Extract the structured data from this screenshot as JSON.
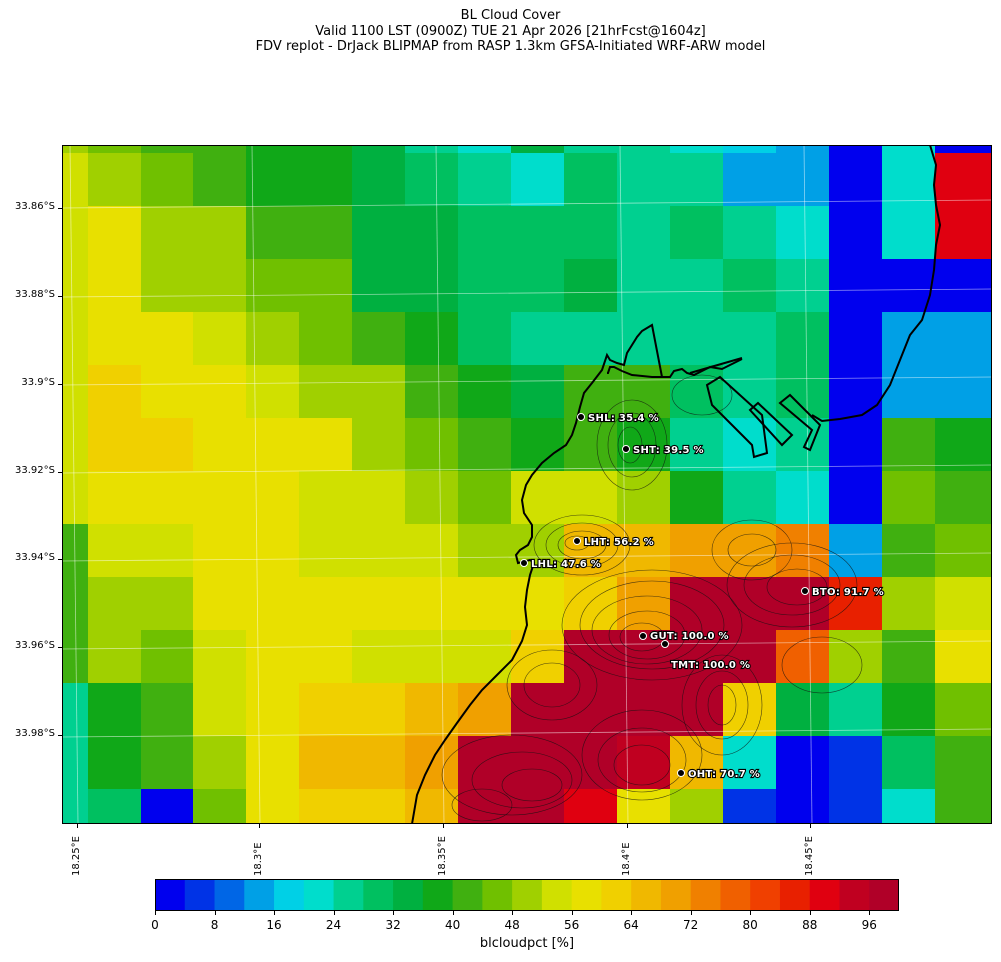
{
  "title": {
    "line1": "BL Cloud Cover",
    "line2": "Valid 1100 LST (0900Z) TUE 21 Apr 2026 [21hrFcst@1604z]",
    "line3": "FDV replot - DrJack BLIPMAP from RASP 1.3km GFSA-Initiated WRF-ARW model"
  },
  "map": {
    "lat_ticks": [
      "33.86°S",
      "33.88°S",
      "33.9°S",
      "33.92°S",
      "33.94°S",
      "33.96°S",
      "33.98°S"
    ],
    "lon_ticks": [
      "18.25°E",
      "18.3°E",
      "18.35°E",
      "18.4°E",
      "18.45°E"
    ],
    "grid_values": [
      [
        50,
        46,
        42,
        42,
        38,
        36,
        32,
        24,
        22,
        32,
        24,
        24,
        22,
        19,
        12,
        3,
        20,
        3
      ],
      [
        52,
        50,
        46,
        40,
        38,
        38,
        34,
        30,
        26,
        22,
        28,
        24,
        24,
        12,
        12,
        3,
        20,
        90
      ],
      [
        52,
        58,
        50,
        48,
        40,
        40,
        34,
        32,
        30,
        28,
        28,
        24,
        30,
        24,
        22,
        3,
        22,
        90
      ],
      [
        52,
        58,
        50,
        48,
        44,
        44,
        34,
        32,
        30,
        28,
        32,
        24,
        26,
        28,
        24,
        3,
        3,
        3
      ],
      [
        52,
        58,
        56,
        52,
        50,
        46,
        42,
        38,
        30,
        24,
        24,
        24,
        24,
        24,
        30,
        3,
        14,
        14
      ],
      [
        52,
        62,
        58,
        58,
        54,
        50,
        50,
        40,
        36,
        34,
        40,
        40,
        28,
        24,
        30,
        3,
        14,
        14
      ],
      [
        52,
        60,
        60,
        58,
        58,
        58,
        48,
        44,
        40,
        38,
        40,
        38,
        24,
        20,
        24,
        3,
        40,
        38
      ],
      [
        52,
        58,
        58,
        58,
        56,
        54,
        52,
        48,
        44,
        54,
        52,
        50,
        36,
        26,
        20,
        3,
        44,
        42
      ],
      [
        42,
        52,
        52,
        56,
        58,
        54,
        54,
        54,
        50,
        50,
        64,
        66,
        70,
        70,
        72,
        14,
        40,
        44
      ],
      [
        42,
        50,
        50,
        56,
        56,
        56,
        56,
        56,
        56,
        56,
        60,
        68,
        98,
        98,
        98,
        84,
        50,
        52
      ],
      [
        42,
        50,
        46,
        52,
        56,
        56,
        54,
        54,
        54,
        60,
        98,
        98,
        98,
        98,
        78,
        48,
        40,
        58
      ],
      [
        24,
        38,
        42,
        52,
        58,
        62,
        62,
        64,
        70,
        98,
        98,
        98,
        96,
        62,
        34,
        24,
        38,
        46
      ],
      [
        24,
        36,
        42,
        50,
        56,
        64,
        64,
        68,
        98,
        98,
        98,
        92,
        66,
        20,
        3,
        6,
        30,
        42
      ],
      [
        24,
        28,
        3,
        44,
        58,
        62,
        62,
        64,
        98,
        98,
        90,
        58,
        50,
        6,
        3,
        6,
        22,
        40
      ]
    ],
    "stations": [
      {
        "code": "SHL",
        "label": "SHL: 35.4 %",
        "value": 35.4
      },
      {
        "code": "SHT",
        "label": "SHT: 39.5 %",
        "value": 39.5
      },
      {
        "code": "LHT",
        "label": "LHT: 56.2 %",
        "value": 56.2
      },
      {
        "code": "LHL",
        "label": "LHL: 47.6 %",
        "value": 47.6
      },
      {
        "code": "BTO",
        "label": "BTO: 91.7 %",
        "value": 91.7
      },
      {
        "code": "GUT",
        "label": "GUT: 100.0 %",
        "value": 100.0
      },
      {
        "code": "TMT",
        "label": "TMT: 100.0 %",
        "value": 100.0
      },
      {
        "code": "OHT",
        "label": "OHT: 70.7 %",
        "value": 70.7
      }
    ]
  },
  "colorbar": {
    "min": 0,
    "max": 100,
    "step": 4,
    "colors": [
      "#0000ee",
      "#0033e6",
      "#0066e6",
      "#00a0e6",
      "#00d0e6",
      "#00ddcc",
      "#00d090",
      "#00c060",
      "#00b040",
      "#10a818",
      "#40b010",
      "#70c000",
      "#a0d000",
      "#d0e000",
      "#e8e000",
      "#f0d000",
      "#f0b800",
      "#f0a000",
      "#f08000",
      "#f06000",
      "#f04000",
      "#e82000",
      "#e00010",
      "#c00020",
      "#b00028"
    ],
    "tick_labels": [
      "0",
      "8",
      "16",
      "24",
      "32",
      "40",
      "48",
      "56",
      "64",
      "72",
      "80",
      "88",
      "96"
    ],
    "label": "blcloudpct [%]"
  }
}
